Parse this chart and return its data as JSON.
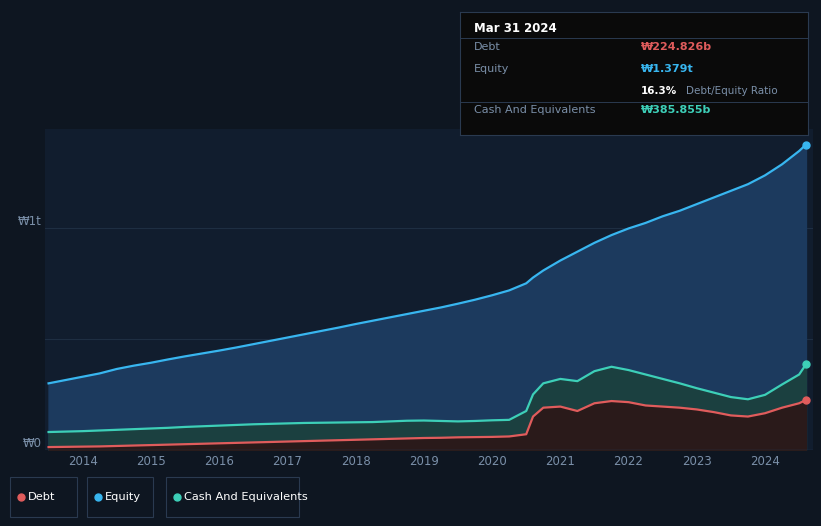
{
  "background_color": "#0e1621",
  "plot_bg_color": "#0e1621",
  "chart_area_color": "#111d2e",
  "title_box": {
    "date": "Mar 31 2024",
    "debt_label": "Debt",
    "debt_value": "₩224.826b",
    "equity_label": "Equity",
    "equity_value": "₩1.379t",
    "ratio_text": "16.3% Debt/Equity Ratio",
    "cash_label": "Cash And Equivalents",
    "cash_value": "₩385.855b"
  },
  "ylabel_top": "₩1t",
  "ylabel_bottom": "₩0",
  "x_ticks": [
    "2014",
    "2015",
    "2016",
    "2017",
    "2018",
    "2019",
    "2020",
    "2021",
    "2022",
    "2023",
    "2024"
  ],
  "legend": [
    {
      "label": "Debt",
      "color": "#e05c5c"
    },
    {
      "label": "Equity",
      "color": "#38b6f0"
    },
    {
      "label": "Cash And Equivalents",
      "color": "#3dcfb8"
    }
  ],
  "equity_color": "#38b6f0",
  "equity_fill": "#1c3a5e",
  "debt_color": "#e05c5c",
  "cash_color": "#3dcfb8",
  "cash_fill": "#1b4040",
  "grid_color": "#1e2e42",
  "text_color": "#7a8fa8",
  "years": [
    2013.0,
    2013.25,
    2013.5,
    2013.75,
    2014.0,
    2014.25,
    2014.5,
    2014.75,
    2015.0,
    2015.25,
    2015.5,
    2015.75,
    2016.0,
    2016.25,
    2016.5,
    2016.75,
    2017.0,
    2017.25,
    2017.5,
    2017.75,
    2018.0,
    2018.25,
    2018.5,
    2018.75,
    2019.0,
    2019.25,
    2019.5,
    2019.75,
    2020.0,
    2020.1,
    2020.25,
    2020.5,
    2020.75,
    2021.0,
    2021.25,
    2021.5,
    2021.75,
    2022.0,
    2022.25,
    2022.5,
    2022.75,
    2023.0,
    2023.25,
    2023.5,
    2023.75,
    2024.0,
    2024.1
  ],
  "equity": [
    0.3,
    0.315,
    0.33,
    0.345,
    0.365,
    0.38,
    0.393,
    0.408,
    0.422,
    0.435,
    0.448,
    0.462,
    0.477,
    0.492,
    0.507,
    0.522,
    0.537,
    0.552,
    0.568,
    0.583,
    0.598,
    0.613,
    0.628,
    0.643,
    0.66,
    0.678,
    0.698,
    0.72,
    0.752,
    0.778,
    0.81,
    0.855,
    0.895,
    0.935,
    0.97,
    1.0,
    1.025,
    1.055,
    1.08,
    1.11,
    1.14,
    1.17,
    1.2,
    1.24,
    1.29,
    1.35,
    1.379
  ],
  "cash": [
    0.08,
    0.082,
    0.084,
    0.087,
    0.09,
    0.093,
    0.096,
    0.099,
    0.103,
    0.106,
    0.109,
    0.112,
    0.115,
    0.117,
    0.119,
    0.121,
    0.122,
    0.123,
    0.124,
    0.125,
    0.128,
    0.131,
    0.132,
    0.13,
    0.128,
    0.13,
    0.133,
    0.135,
    0.175,
    0.25,
    0.3,
    0.32,
    0.31,
    0.355,
    0.375,
    0.36,
    0.34,
    0.32,
    0.3,
    0.278,
    0.258,
    0.238,
    0.228,
    0.248,
    0.295,
    0.34,
    0.386
  ],
  "debt": [
    0.012,
    0.013,
    0.014,
    0.015,
    0.017,
    0.019,
    0.021,
    0.023,
    0.025,
    0.027,
    0.029,
    0.031,
    0.033,
    0.035,
    0.037,
    0.039,
    0.041,
    0.043,
    0.045,
    0.047,
    0.049,
    0.051,
    0.053,
    0.054,
    0.056,
    0.057,
    0.058,
    0.06,
    0.07,
    0.15,
    0.19,
    0.195,
    0.175,
    0.21,
    0.22,
    0.215,
    0.2,
    0.195,
    0.19,
    0.182,
    0.17,
    0.155,
    0.15,
    0.165,
    0.19,
    0.21,
    0.225
  ]
}
